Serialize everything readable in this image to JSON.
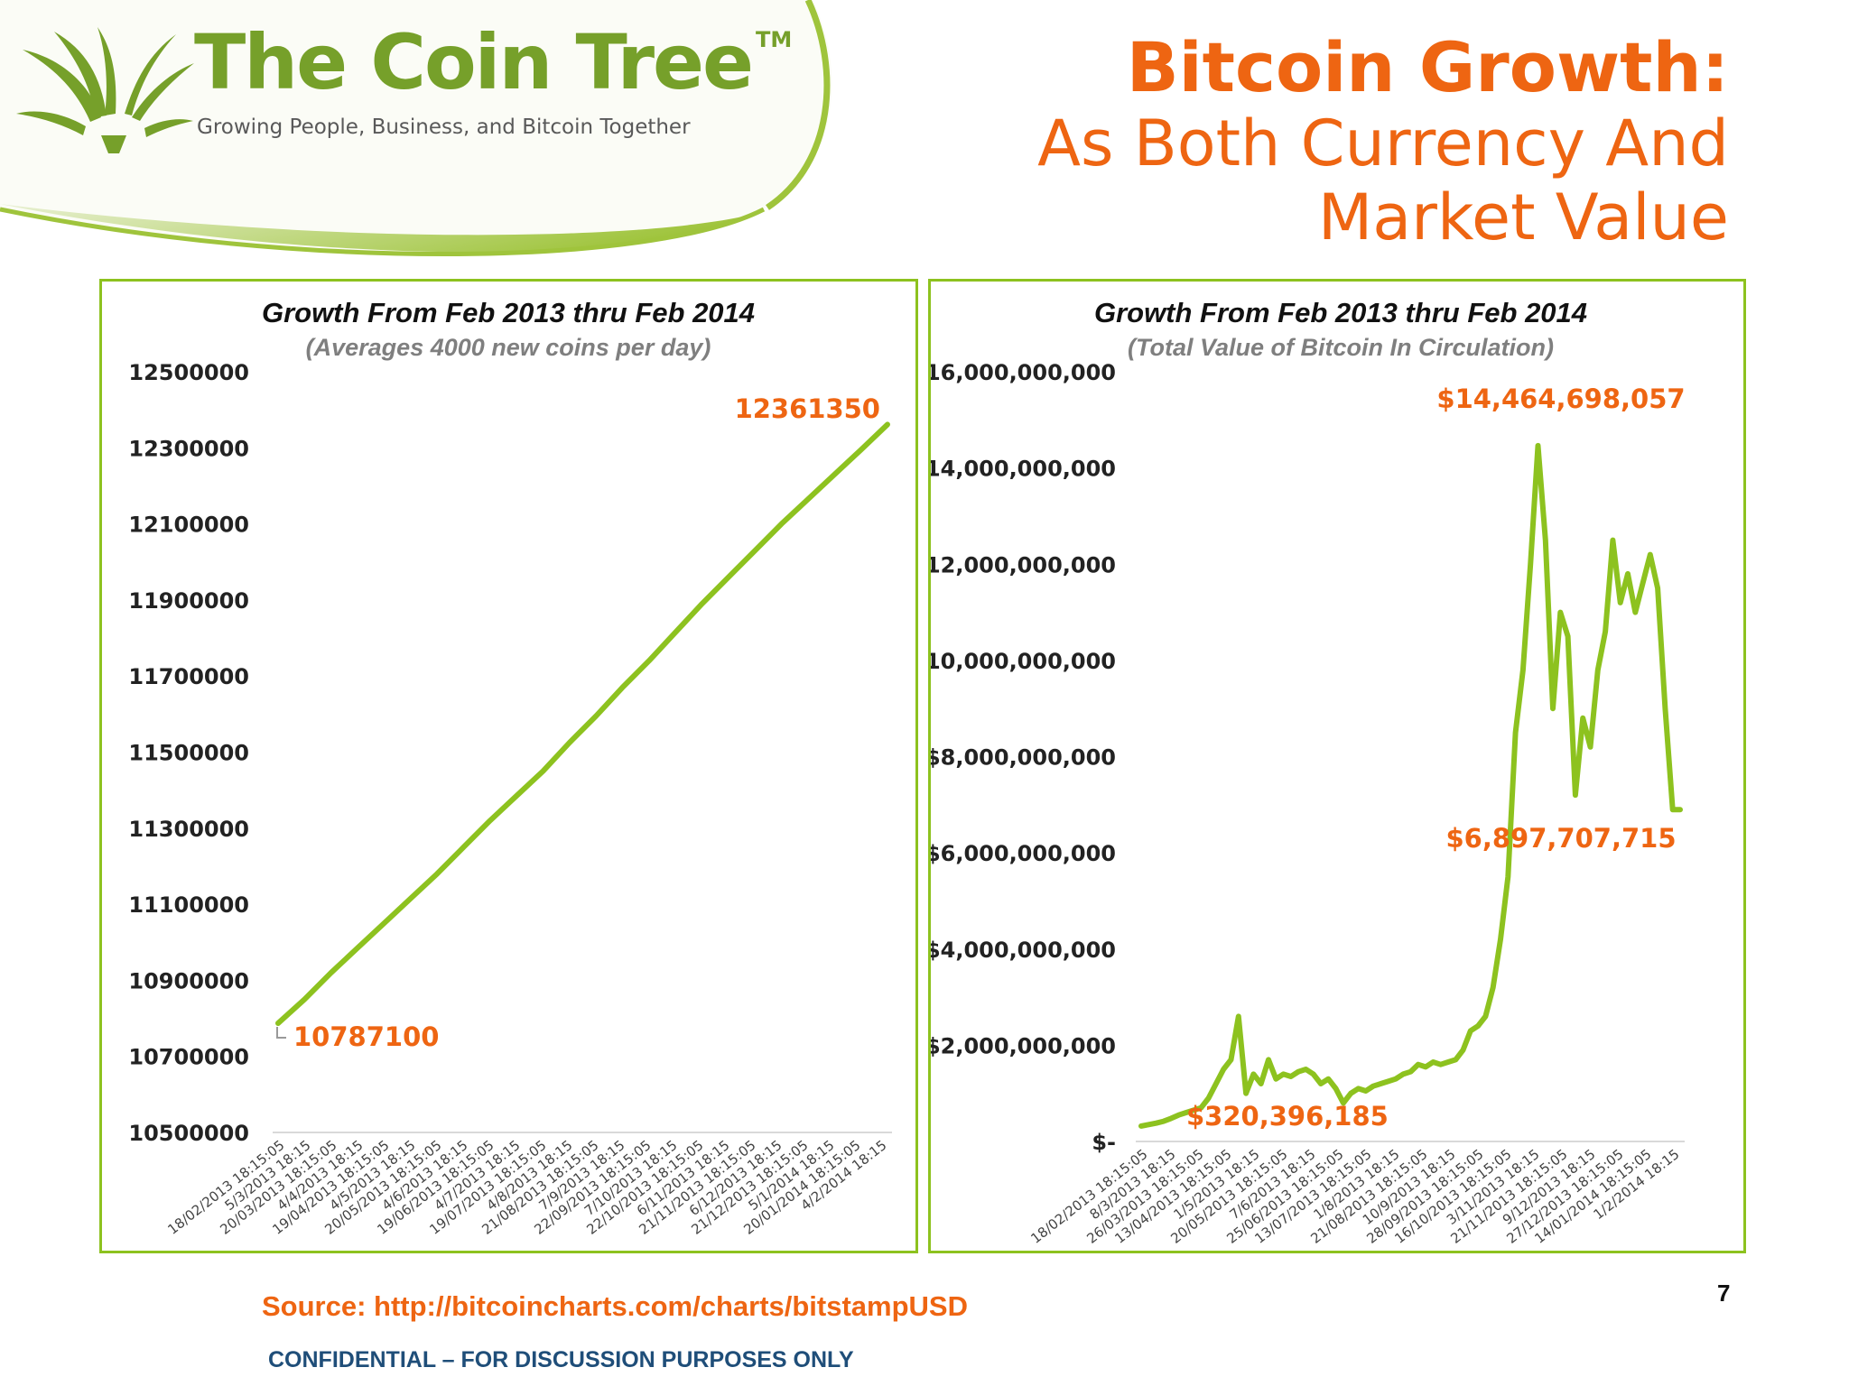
{
  "brand": {
    "name": "The Coin Tree",
    "trademark": "TM",
    "tagline": "Growing People, Business, and Bitcoin Together"
  },
  "slide": {
    "title": "Bitcoin Growth:",
    "subtitle": "As Both Currency And Market Value",
    "source": "Source: http://bitcoincharts.com/charts/bitstampUSD",
    "page_number": "7",
    "footer": "CONFIDENTIAL – FOR DISCUSSION PURPOSES ONLY"
  },
  "colors": {
    "accent_orange": "#ee6512",
    "line_green": "#8dc21f",
    "brand_green": "#76a02a",
    "footer_blue": "#1f4e79"
  },
  "chart_data": [
    {
      "type": "line",
      "title": "Growth From Feb 2013 thru Feb 2014",
      "subtitle": "(Averages 4000 new coins per day)",
      "xlabel": "",
      "ylabel": "",
      "ylim": [
        10500000,
        12500000
      ],
      "yticks": [
        10500000,
        10700000,
        10900000,
        11100000,
        11300000,
        11500000,
        11700000,
        11900000,
        12100000,
        12300000,
        12500000
      ],
      "ytick_labels": [
        "10500000",
        "10700000",
        "10900000",
        "11100000",
        "11300000",
        "11500000",
        "11700000",
        "11900000",
        "12100000",
        "12300000",
        "12500000"
      ],
      "xtick_labels": [
        "18/02/2013 18:15:05",
        "5/3/2013 18:15",
        "20/03/2013 18:15:05",
        "4/4/2013 18:15",
        "19/04/2013 18:15:05",
        "4/5/2013 18:15",
        "20/05/2013 18:15:05",
        "4/6/2013 18:15",
        "19/06/2013 18:15:05",
        "4/7/2013 18:15",
        "19/07/2013 18:15:05",
        "4/8/2013 18:15",
        "21/08/2013 18:15:05",
        "7/9/2013 18:15",
        "22/09/2013 18:15:05",
        "7/10/2013 18:15",
        "22/10/2013 18:15:05",
        "6/11/2013 18:15",
        "21/11/2013 18:15:05",
        "6/12/2013 18:15",
        "21/12/2013 18:15:05",
        "5/1/2014 18:15",
        "20/01/2014 18:15:05",
        "4/2/2014 18:15"
      ],
      "series": [
        {
          "values": [
            10787100,
            10850000,
            10920000,
            10985000,
            11050000,
            11115000,
            11180000,
            11250000,
            11320000,
            11385000,
            11450000,
            11525000,
            11595000,
            11670000,
            11740000,
            11815000,
            11890000,
            11960000,
            12030000,
            12100000,
            12165000,
            12230000,
            12295000,
            12361350
          ]
        }
      ],
      "annotations": [
        {
          "label": "10787100",
          "index": 0,
          "value": 10787100
        },
        {
          "label": "12361350",
          "index": 23,
          "value": 12361350
        }
      ],
      "grid": false,
      "legend": "none"
    },
    {
      "type": "line",
      "title": "Growth From Feb 2013 thru Feb 2014",
      "subtitle": "(Total Value of Bitcoin In Circulation)",
      "xlabel": "",
      "ylabel": "",
      "ylim": [
        0,
        16000000000
      ],
      "yticks": [
        0,
        2000000000,
        4000000000,
        6000000000,
        8000000000,
        10000000000,
        12000000000,
        14000000000,
        16000000000
      ],
      "ytick_labels": [
        "$-",
        "$2,000,000,000",
        "$4,000,000,000",
        "$6,000,000,000",
        "$8,000,000,000",
        "$10,000,000,000",
        "$12,000,000,000",
        "$14,000,000,000",
        "$16,000,000,000"
      ],
      "xtick_labels": [
        "18/02/2013 18:15:05",
        "8/3/2013 18:15",
        "26/03/2013 18:15:05",
        "13/04/2013 18:15:05",
        "1/5/2013 18:15",
        "20/05/2013 18:15:05",
        "7/6/2013 18:15",
        "25/06/2013 18:15:05",
        "13/07/2013 18:15:05",
        "1/8/2013 18:15",
        "21/08/2013 18:15:05",
        "10/9/2013 18:15",
        "28/09/2013 18:15:05",
        "16/10/2013 18:15:05",
        "3/11/2013 18:15",
        "21/11/2013 18:15:05",
        "9/12/2013 18:15",
        "27/12/2013 18:15:05",
        "14/01/2014 18:15:05",
        "1/2/2014 18:15"
      ],
      "series": [
        {
          "values": [
            320396185,
            350000000,
            380000000,
            420000000,
            480000000,
            550000000,
            600000000,
            650000000,
            700000000,
            900000000,
            1200000000,
            1500000000,
            1700000000,
            2600000000,
            1000000000,
            1400000000,
            1200000000,
            1700000000,
            1300000000,
            1400000000,
            1350000000,
            1450000000,
            1500000000,
            1400000000,
            1200000000,
            1300000000,
            1100000000,
            800000000,
            1000000000,
            1100000000,
            1050000000,
            1150000000,
            1200000000,
            1250000000,
            1300000000,
            1400000000,
            1450000000,
            1600000000,
            1550000000,
            1650000000,
            1600000000,
            1650000000,
            1700000000,
            1900000000,
            2300000000,
            2400000000,
            2600000000,
            3200000000,
            4200000000,
            5500000000,
            8500000000,
            9800000000,
            12000000000,
            14464698057,
            12500000000,
            9000000000,
            11000000000,
            10500000000,
            7200000000,
            8800000000,
            8200000000,
            9800000000,
            10600000000,
            12500000000,
            11200000000,
            11800000000,
            11000000000,
            11600000000,
            12200000000,
            11500000000,
            9000000000,
            6897707715,
            6897707715
          ]
        }
      ],
      "annotations": [
        {
          "label": "$320,396,185",
          "index": 0,
          "value": 320396185
        },
        {
          "label": "$14,464,698,057",
          "index": 53,
          "value": 14464698057
        },
        {
          "label": "$6,897,707,715",
          "index": 72,
          "value": 6897707715
        }
      ],
      "grid": false,
      "legend": "none"
    }
  ]
}
